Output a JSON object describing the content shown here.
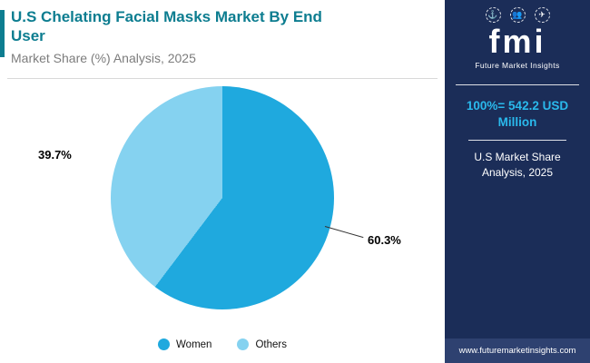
{
  "header": {
    "title": "U.S Chelating Facial Masks Market By End User",
    "subtitle": "Market Share (%) Analysis, 2025",
    "title_color": "#0d7d90",
    "accent_color": "#0d7d90"
  },
  "chart_data": {
    "type": "pie",
    "title": "U.S Chelating Facial Masks Market By End User",
    "subtitle": "Market Share (%) Analysis, 2025",
    "unit": "%",
    "slices": [
      {
        "label": "Women",
        "value": 60.3,
        "display": "60.3%",
        "color": "#1fa9de"
      },
      {
        "label": "Others",
        "value": 39.7,
        "display": "39.7%",
        "color": "#85d2f0"
      }
    ],
    "start_angle_deg": 0,
    "direction": "clockwise",
    "legend_position": "bottom"
  },
  "sidebar": {
    "bg_color": "#1b2d58",
    "footer_bg_color": "#2e4170",
    "logo_text": "fmi",
    "logo_subtext": "Future Market Insights",
    "logo_icons": [
      {
        "name": "anchor-icon",
        "glyph": "⚓"
      },
      {
        "name": "people-icon",
        "glyph": "👥"
      },
      {
        "name": "plane-icon",
        "glyph": "✈"
      }
    ],
    "stat_value": "100%= 542.2 USD Million",
    "stat_value_color": "#2ab9ec",
    "stat_label": "U.S Market Share Analysis, 2025",
    "footer": "www.futuremarketinsights.com"
  }
}
